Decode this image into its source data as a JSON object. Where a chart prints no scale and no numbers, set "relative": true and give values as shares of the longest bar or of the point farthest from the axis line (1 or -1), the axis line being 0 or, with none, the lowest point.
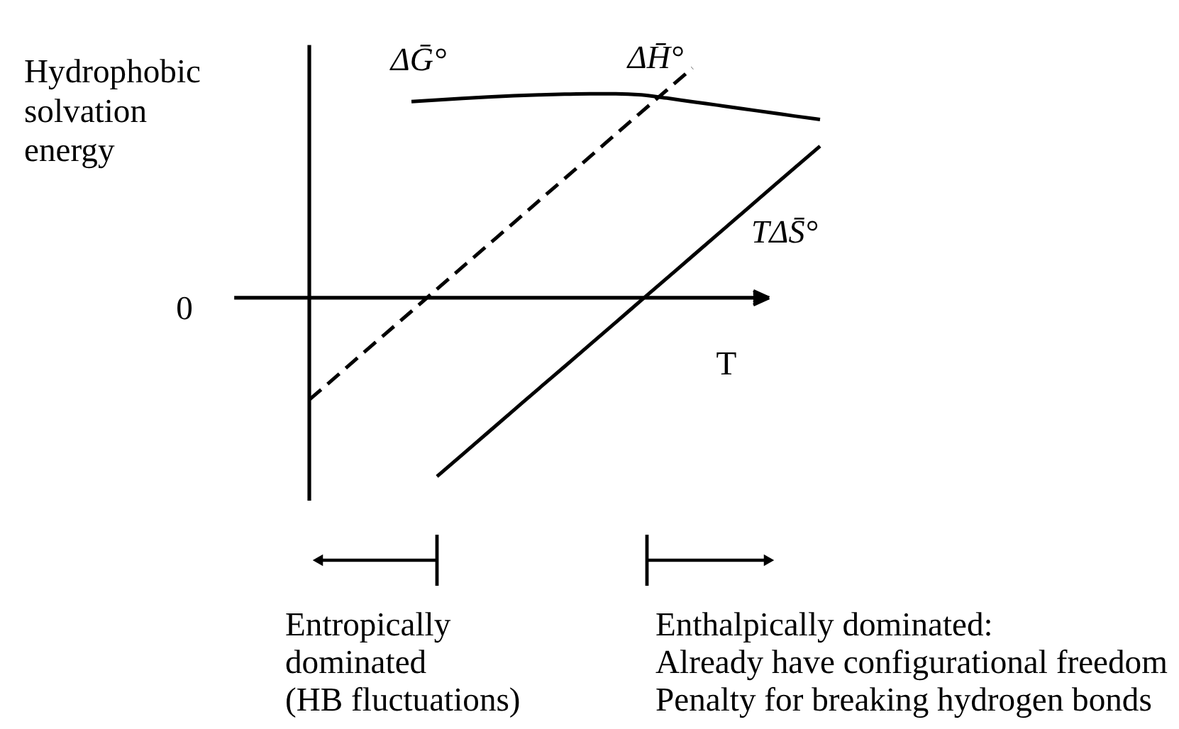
{
  "chart_data": {
    "type": "line",
    "relative": true,
    "categories": [
      null,
      null,
      null,
      null,
      null,
      null,
      null,
      null,
      null,
      null,
      null,
      null,
      null,
      null,
      null,
      null,
      null,
      null,
      null,
      null,
      null
    ],
    "xlabel": "T",
    "ylabel": "Hydrophobic\nsolvation\nenergy",
    "series": [
      {
        "name": "ΔḠ°",
        "color": "#000000",
        "values": [
          null,
          null,
          null,
          null,
          0.854,
          0.861,
          0.868,
          0.874,
          0.879,
          0.883,
          0.886,
          0.888,
          0.888,
          0.883,
          0.869,
          0.853,
          0.838,
          0.822,
          0.807,
          0.791,
          0.776
        ]
      },
      {
        "name": "ΔH̄°",
        "color": "#000000",
        "line_style": "dashed",
        "values": [
          -0.444,
          -0.348,
          -0.251,
          -0.155,
          -0.059,
          0.038,
          0.134,
          0.23,
          0.326,
          0.423,
          0.519,
          0.615,
          0.712,
          0.808,
          0.904,
          1.0,
          null,
          null,
          null,
          null,
          null
        ]
      },
      {
        "name": "TΔS̄°",
        "color": "#000000",
        "values": [
          null,
          null,
          null,
          null,
          null,
          -0.778,
          -0.682,
          -0.586,
          -0.49,
          -0.394,
          -0.299,
          -0.203,
          -0.107,
          -0.011,
          0.085,
          0.181,
          0.277,
          0.373,
          0.469,
          0.565,
          0.66
        ]
      }
    ],
    "annotations": [
      "0",
      "Entropically\ndominated\n(HB fluctuations)",
      "Enthalpically dominated:\nAlready have configurational freedom\nPenalty for breaking hydrogen bonds"
    ]
  }
}
